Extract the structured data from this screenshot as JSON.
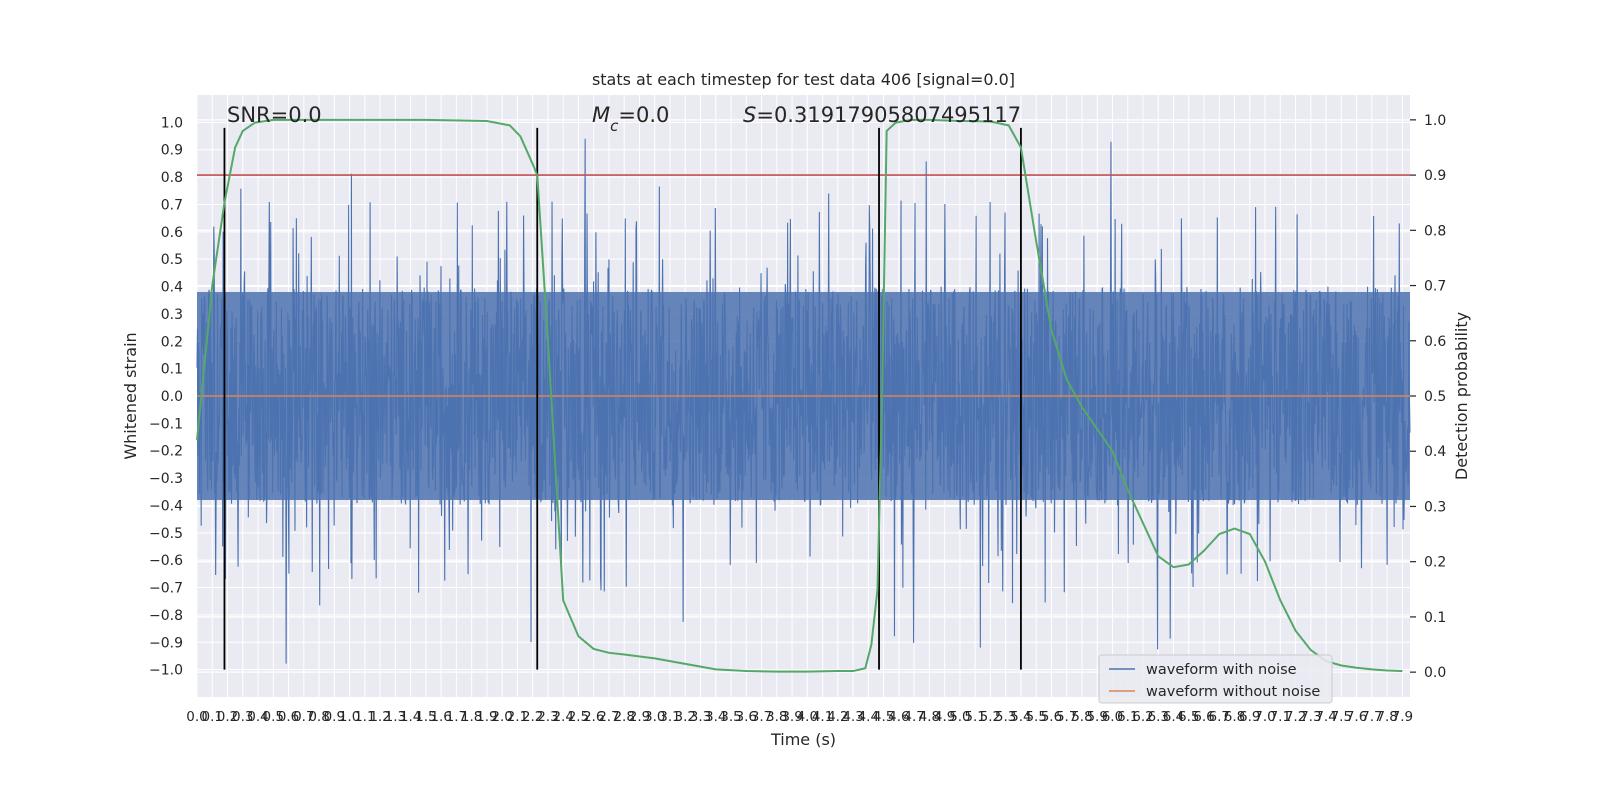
{
  "chart_data": {
    "type": "line",
    "title": "stats at each timestep for test data 406 [signal=0.0]",
    "xlabel": "Time (s)",
    "ylabel": "Whitened strain",
    "y2label": "Detection probability",
    "xlim": [
      0.0,
      7.95
    ],
    "ylim": [
      -1.1,
      1.1
    ],
    "y2lim": [
      -0.045,
      1.045
    ],
    "x_ticks": [
      "0.0",
      "0.1",
      "0.2",
      "0.3",
      "0.4",
      "0.5",
      "0.6",
      "0.7",
      "0.8",
      "0.9",
      "1.0",
      "1.1",
      "1.2",
      "1.3",
      "1.4",
      "1.5",
      "1.6",
      "1.7",
      "1.8",
      "1.9",
      "2.0",
      "2.1",
      "2.2",
      "2.3",
      "2.4",
      "2.5",
      "2.6",
      "2.7",
      "2.8",
      "2.9",
      "3.0",
      "3.1",
      "3.2",
      "3.3",
      "3.4",
      "3.5",
      "3.6",
      "3.7",
      "3.8",
      "3.9",
      "4.0",
      "4.1",
      "4.2",
      "4.3",
      "4.4",
      "4.5",
      "4.6",
      "4.7",
      "4.8",
      "4.9",
      "5.0",
      "5.1",
      "5.2",
      "5.3",
      "5.4",
      "5.5",
      "5.6",
      "5.7",
      "5.8",
      "5.9",
      "6.0",
      "6.1",
      "6.2",
      "6.3",
      "6.4",
      "6.5",
      "6.6",
      "6.7",
      "6.8",
      "6.9",
      "7.0",
      "7.1",
      "7.2",
      "7.3",
      "7.4",
      "7.5",
      "7.6",
      "7.7",
      "7.8",
      "7.9"
    ],
    "y_ticks": [
      "1.0",
      "0.9",
      "0.8",
      "0.7",
      "0.6",
      "0.5",
      "0.4",
      "0.3",
      "0.2",
      "0.1",
      "0.0",
      "-0.1",
      "-0.2",
      "-0.3",
      "-0.4",
      "-0.5",
      "-0.6",
      "-0.7",
      "-0.8",
      "-0.9",
      "-1.0"
    ],
    "y2_ticks": [
      "1.0",
      "0.9",
      "0.8",
      "0.7",
      "0.6",
      "0.5",
      "0.4",
      "0.3",
      "0.2",
      "0.1",
      "0.0"
    ],
    "annotations": {
      "snr": "SNR=0.0",
      "mc_symbol": "M",
      "mc_sub": "c",
      "mc_value": "=0.0",
      "s_symbol": "S",
      "s_value": "=0.31917905807495117"
    },
    "series": [
      {
        "name": "waveform with noise",
        "color": "#4c72b0",
        "description_of_values": "dense noise samples, mostly within +/-0.4 with spikes to about +/-0.98",
        "amplitude_core": 0.4,
        "amplitude_max": 0.98
      },
      {
        "name": "waveform without noise",
        "color": "#dd8452",
        "values_constant": 0.0
      },
      {
        "name": "",
        "axis": "right",
        "color": "#55a868",
        "x": [
          0.0,
          0.1,
          0.18,
          0.25,
          0.3,
          0.38,
          0.5,
          0.7,
          1.0,
          1.5,
          1.9,
          2.05,
          2.12,
          2.2,
          2.23,
          2.3,
          2.4,
          2.5,
          2.6,
          2.7,
          2.8,
          3.0,
          3.2,
          3.4,
          3.6,
          3.8,
          4.0,
          4.2,
          4.3,
          4.38,
          4.42,
          4.46,
          4.49,
          4.52,
          4.58,
          4.68,
          4.8,
          5.0,
          5.2,
          5.32,
          5.4,
          5.5,
          5.6,
          5.7,
          5.8,
          6.0,
          6.1,
          6.2,
          6.3,
          6.4,
          6.5,
          6.6,
          6.7,
          6.8,
          6.9,
          7.0,
          7.1,
          7.2,
          7.3,
          7.4,
          7.5,
          7.6,
          7.7,
          7.8,
          7.9
        ],
        "values": [
          0.42,
          0.7,
          0.85,
          0.95,
          0.98,
          0.995,
          1.0,
          1.0,
          1.0,
          1.0,
          0.998,
          0.99,
          0.97,
          0.92,
          0.9,
          0.6,
          0.13,
          0.065,
          0.042,
          0.035,
          0.032,
          0.025,
          0.015,
          0.005,
          0.002,
          0.001,
          0.001,
          0.002,
          0.002,
          0.007,
          0.05,
          0.15,
          0.5,
          0.98,
          0.995,
          1.0,
          1.0,
          0.998,
          0.997,
          0.99,
          0.95,
          0.78,
          0.62,
          0.53,
          0.48,
          0.4,
          0.33,
          0.27,
          0.21,
          0.19,
          0.195,
          0.22,
          0.25,
          0.26,
          0.25,
          0.2,
          0.13,
          0.075,
          0.04,
          0.02,
          0.012,
          0.008,
          0.005,
          0.003,
          0.002
        ]
      }
    ],
    "hlines": [
      {
        "axis": "right",
        "y": 0.9,
        "color": "#c44e52"
      }
    ],
    "vlines": {
      "x": [
        0.18,
        2.23,
        4.47,
        5.4
      ],
      "ymin": -1.0,
      "ymax": 0.98,
      "color": "#000000"
    },
    "grid": true,
    "legend": {
      "placement": "bottom-right",
      "entries": [
        "waveform with noise",
        "waveform without noise"
      ]
    }
  }
}
